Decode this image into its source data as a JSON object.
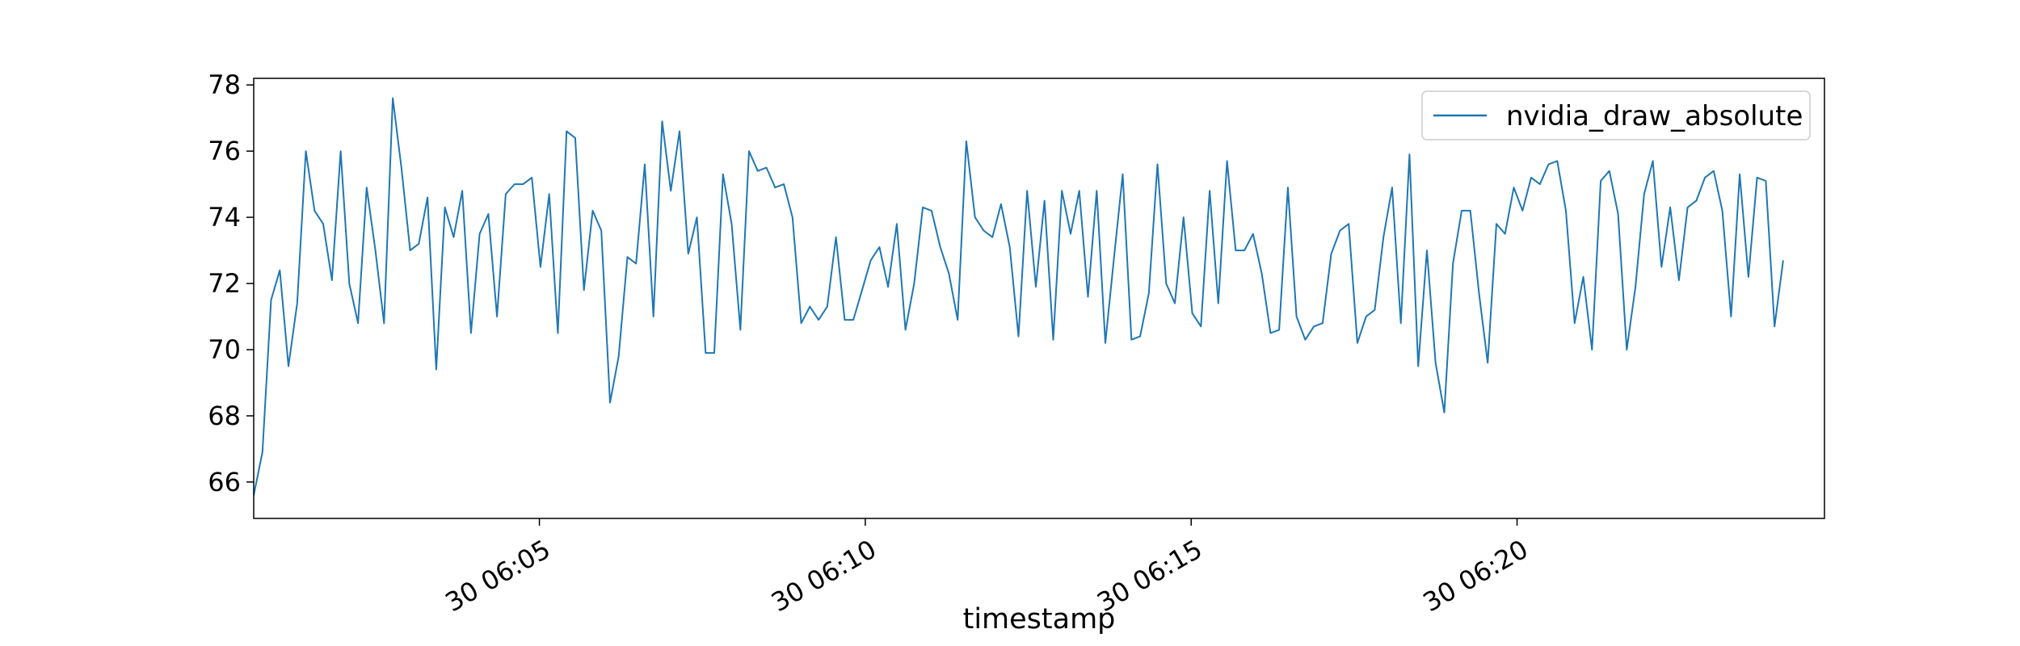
{
  "chart_data": {
    "type": "line",
    "xlabel": "timestamp",
    "ylabel": "",
    "title": "",
    "legend_position": "top-right",
    "grid": false,
    "x_axis": {
      "type": "time",
      "range": [
        "30 06:00:37",
        "30 06:24:43"
      ],
      "ticks": [
        {
          "value": "30 06:05:00",
          "label": "30 06:05"
        },
        {
          "value": "30 06:10:00",
          "label": "30 06:10"
        },
        {
          "value": "30 06:15:00",
          "label": "30 06:15"
        },
        {
          "value": "30 06:20:00",
          "label": "30 06:20"
        }
      ]
    },
    "y_axis": {
      "range": [
        64.9,
        78.2
      ],
      "ticks": [
        {
          "value": 66,
          "label": "66"
        },
        {
          "value": 68,
          "label": "68"
        },
        {
          "value": 70,
          "label": "70"
        },
        {
          "value": 72,
          "label": "72"
        },
        {
          "value": 74,
          "label": "74"
        },
        {
          "value": 76,
          "label": "76"
        },
        {
          "value": 78,
          "label": "78"
        }
      ]
    },
    "series": [
      {
        "name": "nvidia_draw_absolute",
        "color": "#1f77b4",
        "start": "30 06:00:37",
        "interval_seconds": 8,
        "values": [
          65.6,
          66.9,
          71.5,
          72.4,
          69.5,
          71.4,
          76.0,
          74.2,
          73.8,
          72.1,
          76.0,
          72.0,
          70.8,
          74.9,
          73.0,
          70.8,
          77.6,
          75.5,
          73.0,
          73.2,
          74.6,
          69.4,
          74.3,
          73.4,
          74.8,
          70.5,
          73.5,
          74.1,
          71.0,
          74.7,
          75.0,
          75.0,
          75.2,
          72.5,
          74.7,
          70.5,
          76.6,
          76.4,
          71.8,
          74.2,
          73.6,
          68.4,
          69.8,
          72.8,
          72.6,
          75.6,
          71.0,
          76.9,
          74.8,
          76.6,
          72.9,
          74.0,
          69.9,
          69.9,
          75.3,
          73.8,
          70.6,
          76.0,
          75.4,
          75.5,
          74.9,
          75.0,
          74.0,
          70.8,
          71.3,
          70.9,
          71.3,
          73.4,
          70.9,
          70.9,
          71.8,
          72.7,
          73.1,
          71.9,
          73.8,
          70.6,
          72.0,
          74.3,
          74.2,
          73.1,
          72.3,
          70.9,
          76.3,
          74.0,
          73.6,
          73.4,
          74.4,
          73.1,
          70.4,
          74.8,
          71.9,
          74.5,
          70.3,
          74.8,
          73.5,
          74.8,
          71.6,
          74.8,
          70.2,
          72.8,
          75.3,
          70.3,
          70.4,
          71.7,
          75.6,
          72.0,
          71.4,
          74.0,
          71.1,
          70.7,
          74.8,
          71.4,
          75.7,
          73.0,
          73.0,
          73.5,
          72.3,
          70.5,
          70.6,
          74.9,
          71.0,
          70.3,
          70.7,
          70.8,
          72.9,
          73.6,
          73.8,
          70.2,
          71.0,
          71.2,
          73.4,
          74.9,
          70.8,
          75.9,
          69.5,
          73.0,
          69.6,
          68.1,
          72.6,
          74.2,
          74.2,
          71.7,
          69.6,
          73.8,
          73.5,
          74.9,
          74.2,
          75.2,
          75.0,
          75.6,
          75.7,
          74.2,
          70.8,
          72.2,
          70.0,
          75.1,
          75.4,
          74.1,
          70.0,
          71.9,
          74.7,
          75.7,
          72.5,
          74.3,
          72.1,
          74.3,
          74.5,
          75.2,
          75.4,
          74.2,
          71.0,
          75.3,
          72.2,
          75.2,
          75.1,
          70.7,
          72.7
        ]
      }
    ]
  }
}
